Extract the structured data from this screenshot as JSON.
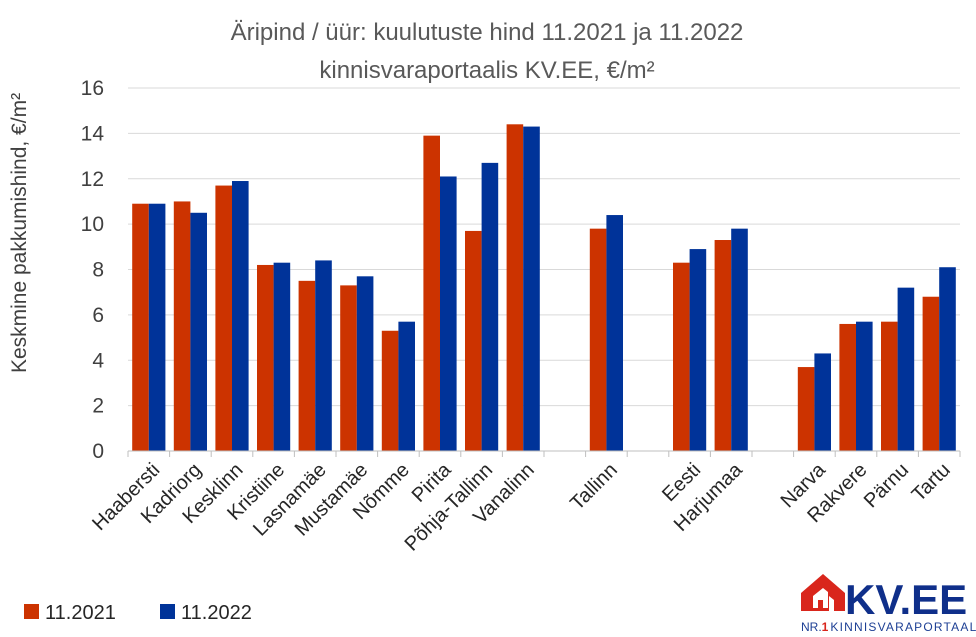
{
  "colors": {
    "series_2021": "#cc3300",
    "series_2022": "#003399",
    "grid": "#d9d9d9",
    "logo_red": "#d9261c",
    "logo_blue": "#0f2f8a"
  },
  "logo": {
    "main": "KV.EE",
    "nr_prefix": "NR.",
    "nr_one": "1",
    "tagline": "KINNISVARAPORTAAL",
    "icon": "house-icon"
  },
  "chart_data": {
    "type": "bar",
    "title_line1": "Äripind / üür: kuulutuste hind 11.2021 ja 11.2022",
    "title_line2": "kinnisvaraportaalis KV.EE, €/m²",
    "ylabel": "Keskmine pakkumishind, €/m²",
    "xlabel": "",
    "ylim": [
      0,
      16
    ],
    "yticks": [
      0,
      2,
      4,
      6,
      8,
      10,
      12,
      14,
      16
    ],
    "grid": true,
    "legend_position": "bottom-left",
    "categories": [
      "Haabersti",
      "Kadriorg",
      "Kesklinn",
      "Kristiine",
      "Lasnamäe",
      "Mustamäe",
      "Nõmme",
      "Pirita",
      "Põhja-Tallinn",
      "Vanalinn",
      "",
      "Tallinn",
      "",
      "Eesti",
      "Harjumaa",
      "",
      "Narva",
      "Rakvere",
      "Pärnu",
      "Tartu"
    ],
    "series": [
      {
        "name": "11.2021",
        "values": [
          10.9,
          11.0,
          11.7,
          8.2,
          7.5,
          7.3,
          5.3,
          13.9,
          9.7,
          14.4,
          null,
          9.8,
          null,
          8.3,
          9.3,
          null,
          3.7,
          5.6,
          5.7,
          6.8
        ]
      },
      {
        "name": "11.2022",
        "values": [
          10.9,
          10.5,
          11.9,
          8.3,
          8.4,
          7.7,
          5.7,
          12.1,
          12.7,
          14.3,
          null,
          10.4,
          null,
          8.9,
          9.8,
          null,
          4.3,
          5.7,
          7.2,
          8.1
        ]
      }
    ]
  }
}
